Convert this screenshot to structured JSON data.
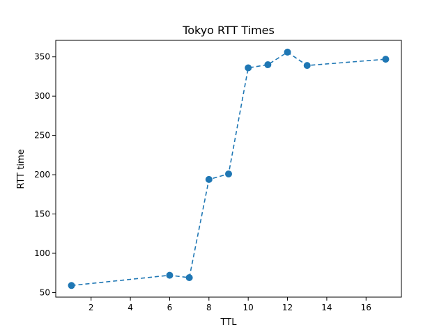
{
  "chart_data": {
    "type": "line",
    "title": "Tokyo RTT Times",
    "xlabel": "TTL",
    "ylabel": "RTT time",
    "xlim": [
      0.2,
      17.8
    ],
    "ylim": [
      44.2,
      371.0
    ],
    "xticks": [
      2,
      4,
      6,
      8,
      10,
      12,
      14,
      16
    ],
    "yticks": [
      50,
      100,
      150,
      200,
      250,
      300,
      350
    ],
    "grid": false,
    "series": [
      {
        "x": [
          1,
          6,
          7,
          8,
          9,
          10,
          11,
          12,
          13,
          17
        ],
        "y": [
          59,
          72,
          69,
          194,
          201,
          336,
          340,
          356,
          339,
          347
        ],
        "color": "#1f77b4",
        "line_style": "dashed",
        "marker": "circle"
      }
    ]
  }
}
